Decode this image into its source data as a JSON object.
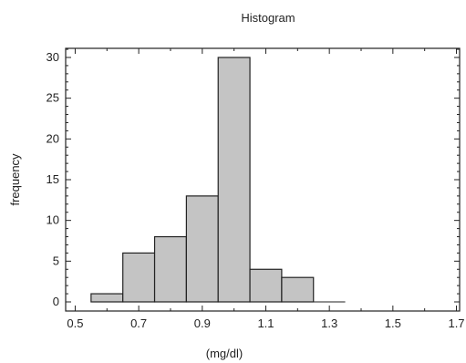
{
  "chart_data": {
    "type": "bar",
    "subtype": "histogram",
    "title": "Histogram",
    "xlabel": "(mg/dl)",
    "ylabel": "frequency",
    "xlim": [
      0.5,
      1.7
    ],
    "ylim": [
      0,
      31
    ],
    "x_ticks": [
      "0.5",
      "0.7",
      "0.9",
      "1.1",
      "1.3",
      "1.5",
      "1.7"
    ],
    "y_ticks": [
      "0",
      "5",
      "10",
      "15",
      "20",
      "25",
      "30"
    ],
    "bins": [
      {
        "start": 0.55,
        "end": 0.65,
        "count": 1
      },
      {
        "start": 0.65,
        "end": 0.75,
        "count": 6
      },
      {
        "start": 0.75,
        "end": 0.85,
        "count": 8
      },
      {
        "start": 0.85,
        "end": 0.95,
        "count": 13
      },
      {
        "start": 0.95,
        "end": 1.05,
        "count": 30
      },
      {
        "start": 1.05,
        "end": 1.15,
        "count": 4
      },
      {
        "start": 1.15,
        "end": 1.25,
        "count": 3
      },
      {
        "start": 1.25,
        "end": 1.35,
        "count": 0
      }
    ],
    "grid": false,
    "legend": "none"
  }
}
